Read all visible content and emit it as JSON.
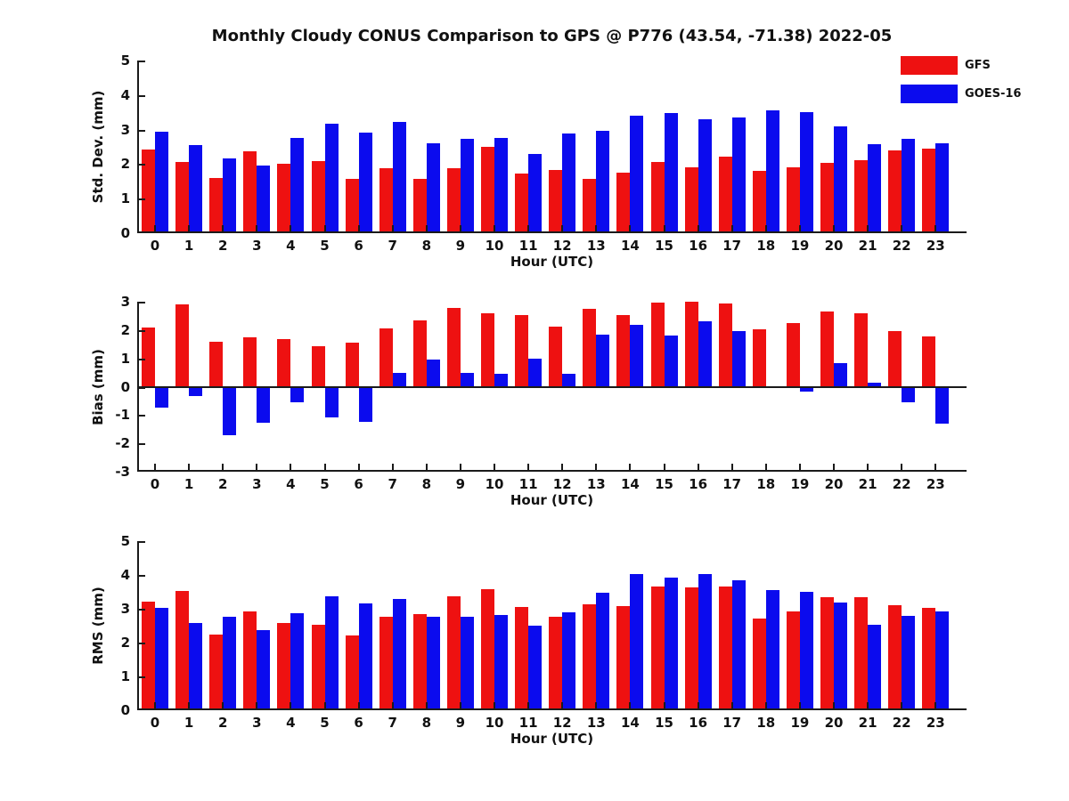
{
  "page": {
    "background": "#ffffff"
  },
  "colors": {
    "gfs": "#ee1111",
    "goes16": "#0b0bee",
    "axis": "#1a1a1a"
  },
  "chart_data": [
    {
      "type": "bar",
      "title": "Monthly Cloudy CONUS Comparison to GPS @ P776 (43.54, -71.38) 2022-05",
      "xlabel": "Hour (UTC)",
      "ylabel": "Std. Dev. (mm)",
      "ylim": [
        0,
        5
      ],
      "yticks": [
        5,
        4,
        3,
        2,
        1,
        0
      ],
      "grid": false,
      "legend_position": "top-right-outside",
      "categories": [
        "0",
        "1",
        "2",
        "3",
        "4",
        "5",
        "6",
        "7",
        "8",
        "9",
        "10",
        "11",
        "12",
        "13",
        "14",
        "15",
        "16",
        "17",
        "18",
        "19",
        "20",
        "21",
        "22",
        "23"
      ],
      "series": [
        {
          "name": "GFS",
          "color": "#ee1111",
          "values": [
            2.42,
            2.05,
            1.6,
            2.37,
            2.02,
            2.1,
            1.57,
            1.88,
            1.57,
            1.88,
            2.49,
            1.72,
            1.82,
            1.57,
            1.74,
            2.07,
            1.9,
            2.21,
            1.8,
            1.9,
            2.04,
            2.12,
            2.4,
            2.46
          ]
        },
        {
          "name": "GOES-16",
          "color": "#0b0bee",
          "values": [
            2.95,
            2.55,
            2.16,
            1.96,
            2.77,
            3.17,
            2.9,
            3.22,
            2.61,
            2.72,
            2.77,
            2.3,
            2.88,
            2.97,
            3.41,
            3.48,
            3.29,
            3.36,
            3.55,
            3.51,
            3.09,
            2.57,
            2.74,
            2.61
          ]
        }
      ]
    },
    {
      "type": "bar",
      "title": "",
      "xlabel": "Hour (UTC)",
      "ylabel": "Bias (mm)",
      "ylim": [
        -3,
        3
      ],
      "yticks": [
        3,
        2,
        1,
        0,
        -1,
        -2,
        -3
      ],
      "grid": false,
      "categories": [
        "0",
        "1",
        "2",
        "3",
        "4",
        "5",
        "6",
        "7",
        "8",
        "9",
        "10",
        "11",
        "12",
        "13",
        "14",
        "15",
        "16",
        "17",
        "18",
        "19",
        "20",
        "21",
        "22",
        "23"
      ],
      "series": [
        {
          "name": "GFS",
          "color": "#ee1111",
          "values": [
            2.1,
            2.9,
            1.58,
            1.73,
            1.67,
            1.44,
            1.57,
            2.05,
            2.33,
            2.77,
            2.6,
            2.52,
            2.11,
            2.74,
            2.53,
            2.97,
            3.0,
            2.93,
            2.04,
            2.24,
            2.64,
            2.58,
            1.95,
            1.77
          ]
        },
        {
          "name": "GOES-16",
          "color": "#0b0bee",
          "values": [
            -0.75,
            -0.32,
            -1.7,
            -1.28,
            -0.55,
            -1.08,
            -1.25,
            0.5,
            0.95,
            0.5,
            0.47,
            1.0,
            0.46,
            1.85,
            2.17,
            1.8,
            2.32,
            1.95,
            0.0,
            -0.16,
            0.82,
            0.13,
            -0.55,
            -1.3
          ]
        }
      ]
    },
    {
      "type": "bar",
      "title": "",
      "xlabel": "Hour (UTC)",
      "ylabel": "RMS (mm)",
      "ylim": [
        0,
        5
      ],
      "yticks": [
        5,
        4,
        3,
        2,
        1,
        0
      ],
      "grid": false,
      "categories": [
        "0",
        "1",
        "2",
        "3",
        "4",
        "5",
        "6",
        "7",
        "8",
        "9",
        "10",
        "11",
        "12",
        "13",
        "14",
        "15",
        "16",
        "17",
        "18",
        "19",
        "20",
        "21",
        "22",
        "23"
      ],
      "series": [
        {
          "name": "GFS",
          "color": "#ee1111",
          "values": [
            3.21,
            3.52,
            2.23,
            2.92,
            2.59,
            2.53,
            2.21,
            2.76,
            2.83,
            3.36,
            3.58,
            3.04,
            2.77,
            3.13,
            3.07,
            3.65,
            3.62,
            3.67,
            2.7,
            2.92,
            3.33,
            3.34,
            3.1,
            3.02
          ]
        },
        {
          "name": "GOES-16",
          "color": "#0b0bee",
          "values": [
            3.03,
            2.59,
            2.76,
            2.36,
            2.86,
            3.36,
            3.17,
            3.3,
            2.76,
            2.76,
            2.81,
            2.49,
            2.9,
            3.47,
            4.03,
            3.92,
            4.03,
            3.84,
            3.56,
            3.5,
            3.19,
            2.53,
            2.79,
            2.92
          ]
        }
      ]
    }
  ]
}
